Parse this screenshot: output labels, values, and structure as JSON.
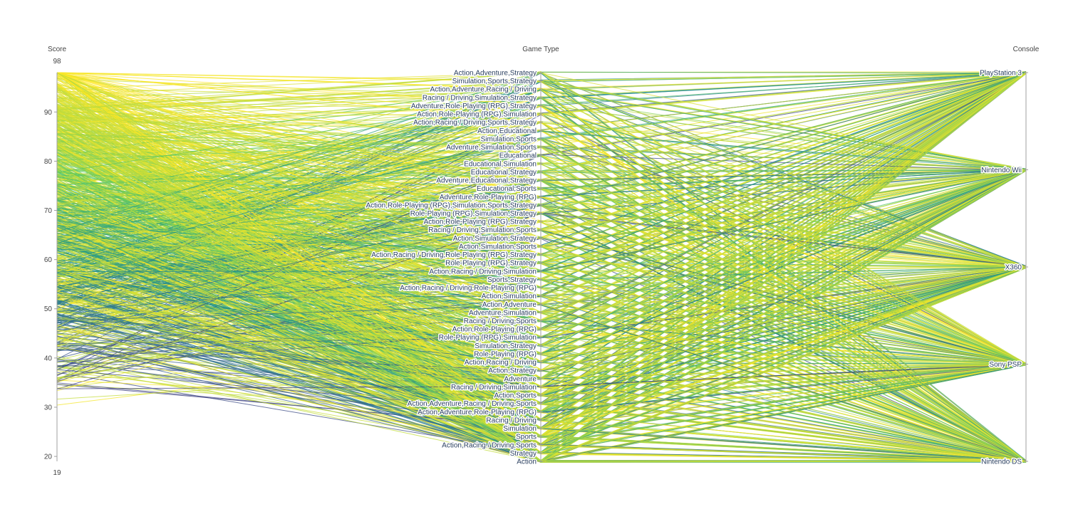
{
  "chart_data": {
    "type": "parallel_categories",
    "dimensions": [
      {
        "name": "Score",
        "kind": "numeric",
        "range": [
          19,
          98
        ],
        "ticks": [
          20,
          30,
          40,
          50,
          60,
          70,
          80,
          90
        ],
        "range_labels": [
          "98",
          "19"
        ]
      },
      {
        "name": "Game Type",
        "kind": "categorical",
        "categories": [
          "Action,Adventure,Strategy",
          "Simulation,Sports,Strategy",
          "Action,Adventure,Racing / Driving",
          "Racing / Driving,Simulation,Strategy",
          "Adventure,Role-Playing (RPG),Strategy",
          "Action,Role-Playing (RPG),Simulation",
          "Action,Racing / Driving,Sports,Strategy",
          "Action,Educational",
          "Simulation,Sports",
          "Adventure,Simulation,Sports",
          "Educational",
          "Educational,Simulation",
          "Educational,Strategy",
          "Adventure,Educational,Strategy",
          "Educational,Sports",
          "Adventure,Role-Playing (RPG)",
          "Action,Role-Playing (RPG),Simulation,Sports,Strategy",
          "Role-Playing (RPG),Simulation,Strategy",
          "Action,Role-Playing (RPG),Strategy",
          "Racing / Driving,Simulation,Sports",
          "Action,Simulation,Strategy",
          "Action,Simulation,Sports",
          "Action,Racing / Driving,Role-Playing (RPG),Strategy",
          "Role-Playing (RPG),Strategy",
          "Action,Racing / Driving,Simulation",
          "Sports,Strategy",
          "Action,Racing / Driving,Role-Playing (RPG)",
          "Action,Simulation",
          "Action,Adventure",
          "Adventure,Simulation",
          "Racing / Driving,Sports",
          "Action,Role-Playing (RPG)",
          "Role-Playing (RPG),Simulation",
          "Simulation,Strategy",
          "Role-Playing (RPG)",
          "Action,Racing / Driving",
          "Action,Strategy",
          "Adventure",
          "Racing / Driving,Simulation",
          "Action,Sports",
          "Action,Adventure,Racing / Driving,Sports",
          "Action,Adventure,Role-Playing (RPG)",
          "Racing / Driving",
          "Simulation",
          "Sports",
          "Action,Racing / Driving,Sports",
          "Strategy",
          "Action"
        ]
      },
      {
        "name": "Console",
        "kind": "categorical",
        "categories": [
          "PlayStation 3",
          "Nintendo Wii",
          "X360",
          "Sony PSP",
          "Nintendo DS"
        ]
      }
    ],
    "color_scale": [
      "#440154",
      "#3b528b",
      "#21918c",
      "#5ec962",
      "#fde725"
    ],
    "line_count": 1200
  }
}
